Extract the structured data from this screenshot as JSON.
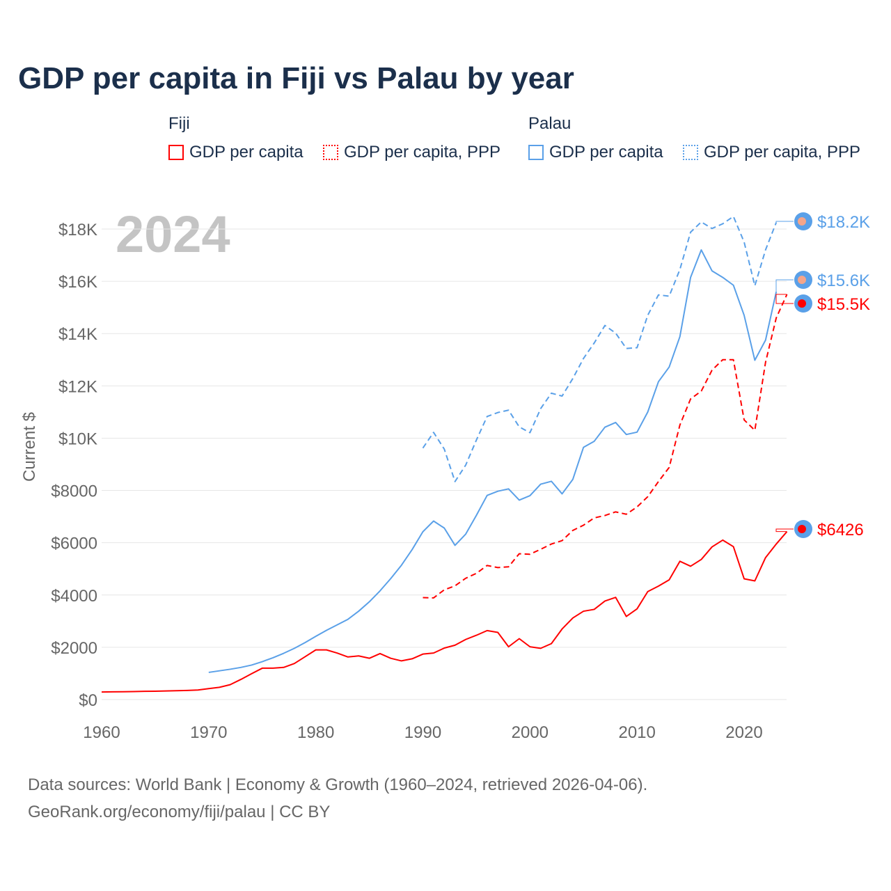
{
  "title": "GDP per capita in Fiji vs Palau by year",
  "legend": {
    "groups": [
      {
        "name": "Fiji",
        "items": [
          "GDP per capita",
          "GDP per capita, PPP"
        ]
      },
      {
        "name": "Palau",
        "items": [
          "GDP per capita",
          "GDP per capita, PPP"
        ]
      }
    ]
  },
  "source": {
    "line1": "Data sources: World Bank | Economy & Growth (1960–2024, retrieved 2026-04-06).",
    "line2": "GeoRank.org/economy/fiji/palau | CC BY"
  },
  "chart_data": {
    "type": "line",
    "title": "GDP per capita in Fiji vs Palau by year",
    "year_watermark": "2024",
    "ylabel": "Current $",
    "xlabel": "",
    "xlim": [
      1960,
      2024
    ],
    "ylim": [
      0,
      18500
    ],
    "x_ticks": [
      "1960",
      "1970",
      "1980",
      "1990",
      "2000",
      "2010",
      "2020"
    ],
    "y_ticks": [
      "$0",
      "$2000",
      "$4000",
      "$6000",
      "$8000",
      "$10K",
      "$12K",
      "$14K",
      "$16K",
      "$18K"
    ],
    "grid": true,
    "series": [
      {
        "name": "Fiji GDP per capita",
        "color": "#ff0000",
        "dash": "solid",
        "start": 1960,
        "end_label": "$6426",
        "values": [
          290,
          295,
          300,
          305,
          315,
          320,
          330,
          340,
          350,
          365,
          420,
          470,
          570,
          770,
          990,
          1200,
          1200,
          1230,
          1380,
          1640,
          1900,
          1900,
          1780,
          1630,
          1670,
          1580,
          1760,
          1580,
          1480,
          1560,
          1740,
          1780,
          1970,
          2080,
          2300,
          2460,
          2640,
          2570,
          2020,
          2330,
          2020,
          1960,
          2140,
          2700,
          3120,
          3380,
          3450,
          3770,
          3910,
          3180,
          3470,
          4130,
          4340,
          4580,
          5290,
          5100,
          5360,
          5840,
          6100,
          5850,
          4620,
          4540,
          5430,
          5950,
          6426
        ]
      },
      {
        "name": "Fiji GDP per capita, PPP",
        "color": "#ff0000",
        "dash": "dashed",
        "start": 1990,
        "end_label": "$15.5K",
        "values": [
          3900,
          3890,
          4200,
          4350,
          4640,
          4830,
          5130,
          5050,
          5080,
          5580,
          5560,
          5750,
          5950,
          6080,
          6470,
          6670,
          6950,
          7040,
          7180,
          7090,
          7370,
          7760,
          8340,
          8880,
          10500,
          11500,
          11800,
          12600,
          13000,
          13000,
          10700,
          10300,
          12900,
          14600,
          15500
        ]
      },
      {
        "name": "Palau GDP per capita",
        "color": "#5aa0e8",
        "dash": "solid",
        "start": 1970,
        "end_label": "$15.6K",
        "values": [
          1040,
          1100,
          1160,
          1230,
          1320,
          1450,
          1600,
          1770,
          1960,
          2180,
          2420,
          2650,
          2860,
          3070,
          3380,
          3740,
          4160,
          4630,
          5140,
          5740,
          6420,
          6830,
          6560,
          5900,
          6330,
          7050,
          7810,
          7970,
          8060,
          7630,
          7800,
          8240,
          8350,
          7870,
          8420,
          9650,
          9880,
          10420,
          10600,
          10140,
          10230,
          11000,
          12160,
          12720,
          13880,
          16150,
          17200,
          16400,
          16150,
          15850,
          14700,
          12980,
          13750,
          15600
        ]
      },
      {
        "name": "Palau GDP per capita, PPP",
        "color": "#5aa0e8",
        "dash": "dashed",
        "start": 1990,
        "end_label": "$18.2K",
        "values": [
          9620,
          10220,
          9580,
          8340,
          8970,
          9930,
          10830,
          10980,
          11070,
          10430,
          10210,
          11130,
          11720,
          11610,
          12280,
          13050,
          13640,
          14310,
          14020,
          13430,
          13460,
          14700,
          15480,
          15430,
          16450,
          17880,
          18270,
          18020,
          18200,
          18480,
          17500,
          15830,
          17200,
          18250
        ]
      }
    ]
  }
}
